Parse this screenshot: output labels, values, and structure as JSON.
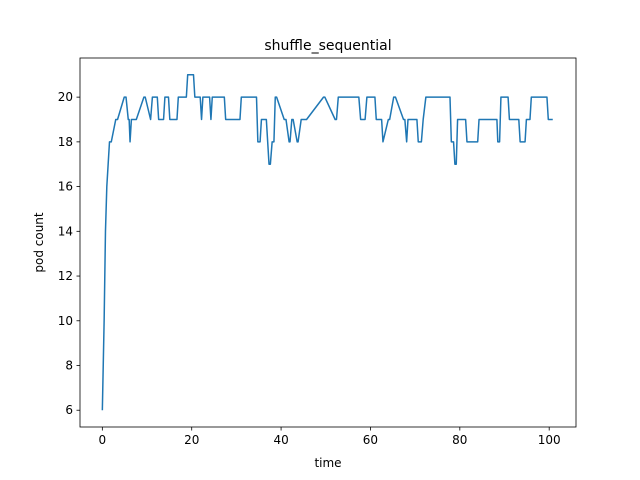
{
  "chart_data": {
    "type": "line",
    "title": "shuffle_sequential",
    "xlabel": "time",
    "ylabel": "pod count",
    "xlim": [
      -5,
      106
    ],
    "ylim": [
      5.25,
      21.75
    ],
    "xticks": [
      0,
      20,
      40,
      60,
      80,
      100
    ],
    "yticks": [
      6,
      8,
      10,
      12,
      14,
      16,
      18,
      20
    ],
    "grid": false,
    "series_color": "#1f77b4",
    "series": [
      {
        "x": [
          0,
          0.4,
          0.7,
          1.0,
          1.3,
          1.6,
          2.0,
          3.0,
          3.4,
          4.9,
          5.3,
          5.8,
          6.0,
          6.2,
          6.5,
          7.3,
          7.6,
          9.3,
          9.6,
          10.8,
          11.2,
          12.3,
          12.6,
          13.7,
          14.0,
          14.8,
          15.1,
          16.7,
          17.0,
          18.8,
          19.1,
          20.4,
          20.7,
          21.9,
          22.2,
          22.5,
          24.0,
          24.3,
          24.6,
          27.3,
          27.6,
          30.8,
          31.1,
          34.5,
          34.8,
          35.3,
          35.6,
          36.7,
          37.0,
          37.3,
          37.6,
          38.0,
          38.4,
          38.7,
          39.0,
          40.7,
          41.1,
          41.8,
          42.0,
          42.4,
          42.7,
          43.6,
          43.8,
          44.5,
          44.8,
          45.4,
          45.7,
          49.5,
          49.8,
          52.1,
          52.4,
          52.8,
          53.2,
          57.4,
          57.8,
          58.8,
          59.2,
          61.0,
          61.3,
          62.5,
          62.8,
          64.0,
          64.3,
          65.2,
          65.6,
          67.4,
          67.7,
          68.1,
          68.4,
          70.4,
          70.7,
          71.4,
          71.8,
          72.4,
          72.8,
          77.8,
          78.1,
          78.6,
          78.9,
          79.2,
          79.5,
          81.3,
          81.6,
          84.0,
          84.3,
          87.7,
          87.9,
          88.3,
          88.5,
          88.9,
          89.2,
          90.8,
          91.1,
          93.2,
          93.5,
          94.6,
          94.9,
          95.7,
          96.0,
          99.5,
          99.8,
          100.8
        ],
        "y": [
          6,
          10,
          14,
          16,
          17,
          18,
          18,
          19,
          19,
          20,
          20,
          19,
          19,
          18,
          19,
          19,
          19,
          20,
          20,
          19,
          20,
          20,
          19,
          19,
          20,
          20,
          19,
          19,
          20,
          20,
          21,
          21,
          20,
          20,
          19,
          20,
          20,
          19,
          20,
          20,
          19,
          19,
          20,
          20,
          18,
          18,
          19,
          19,
          18,
          17,
          17,
          18,
          18,
          20,
          20,
          19,
          19,
          18,
          18,
          19,
          19,
          18,
          18,
          19,
          19,
          19,
          19,
          20,
          20,
          19,
          19,
          20,
          20,
          20,
          19,
          19,
          20,
          20,
          19,
          19,
          18,
          19,
          19,
          20,
          20,
          19,
          19,
          18,
          19,
          19,
          18,
          18,
          19,
          20,
          20,
          20,
          18,
          18,
          17,
          17,
          19,
          19,
          18,
          18,
          19,
          19,
          19,
          19,
          18,
          18,
          20,
          20,
          19,
          19,
          18,
          18,
          19,
          19,
          20,
          20,
          19,
          19
        ]
      }
    ]
  }
}
